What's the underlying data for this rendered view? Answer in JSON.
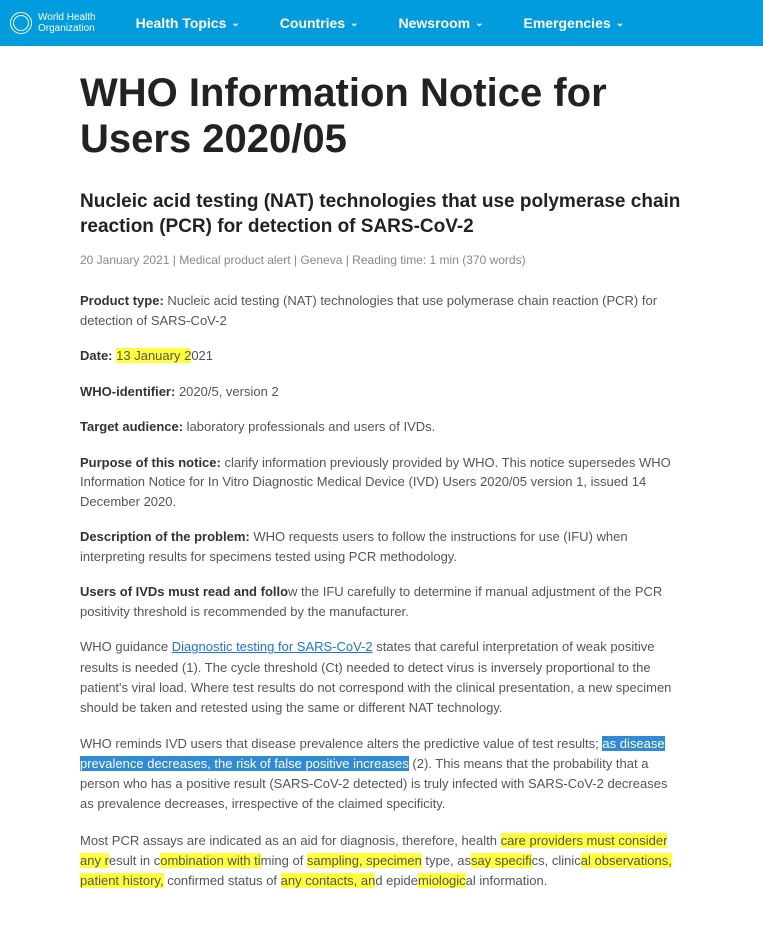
{
  "nav": {
    "logo_line1": "World Health",
    "logo_line2": "Organization",
    "items": [
      "Health Topics",
      "Countries",
      "Newsroom",
      "Emergencies"
    ]
  },
  "page": {
    "title": "WHO Information Notice for Users 2020/05",
    "subtitle": "Nucleic acid testing (NAT) technologies that use polymerase chain reaction (PCR) for detection of SARS-CoV-2",
    "meta": "20 January 2021 | Medical product alert | Geneva | Reading time: 1 min (370 words)"
  },
  "fields": {
    "product_type_label": "Product type:",
    "product_type_value": " Nucleic acid testing (NAT) technologies that use polymerase chain reaction (PCR) for detection of SARS-CoV-2",
    "date_label": "Date:",
    "date_hl": "13 January 2",
    "date_rest": "021",
    "who_id_label": "WHO-identifier:",
    "who_id_value": " 2020/5, version 2",
    "audience_label": "Target audience:",
    "audience_value": " laboratory professionals and users of IVDs.",
    "purpose_label": "Purpose of this notice:",
    "purpose_value": " clarify information previously provided by WHO. This notice supersedes WHO Information Notice for In Vitro Diagnostic Medical Device (IVD) Users 2020/05 version 1, issued 14 December 2020.",
    "desc_label": "Description of the problem:",
    "desc_value": " WHO requests users to follow the instructions for use (IFU) when interpreting results for specimens tested using PCR methodology.",
    "ivd_label": "Users of IVDs must read and follo",
    "ivd_value": "w the IFU carefully to determine if manual adjustment of the PCR positivity threshold is recommended by the manufacturer."
  },
  "paras": {
    "guidance_pre": "WHO guidance ",
    "guidance_link": "Diagnostic testing for SARS-CoV-2",
    "guidance_post": " states that careful interpretation of weak positive results is needed (1). The cycle threshold (Ct) needed to detect virus is inversely proportional to the patient's viral load. Where test results do not correspond with the clinical presentation, a new specimen should be taken and retested using the same or different NAT technology.",
    "reminds_pre": "WHO reminds IVD users that disease prevalence alters the predictive value of test results; ",
    "reminds_hl": "as disease prevalence decreases, the risk of false positive increases",
    "reminds_post": " (2). This means that the probability that a person who has a positive result (SARS-CoV-2 detected) is truly infected with SARS-CoV-2 decreases as prevalence decreases, irrespective of the claimed specificity.",
    "pcr_1": "Most PCR assays are indicated as an aid for diagnosis, therefore, health ",
    "pcr_h1": "care providers must consider any r",
    "pcr_2": "esult in c",
    "pcr_h2": "ombination with ti",
    "pcr_3": "ming of ",
    "pcr_h3": "sampling, specimen",
    "pcr_4": " type, as",
    "pcr_h4": "say specifi",
    "pcr_5": "cs, clinic",
    "pcr_h5": "al observations, patient history,",
    "pcr_6": " confirmed status of ",
    "pcr_h6": "any contacts, an",
    "pcr_7": "d epide",
    "pcr_h7": "miologic",
    "pcr_8": "al information."
  },
  "colors": {
    "nav_bg": "#009cde",
    "highlight_yellow": "#ffff3b",
    "highlight_blue": "#2f8ad8",
    "link": "#1a73e8"
  }
}
